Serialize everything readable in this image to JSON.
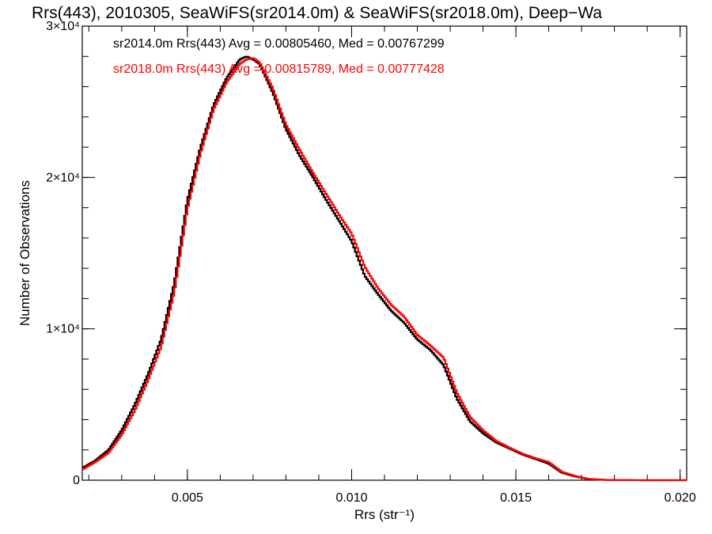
{
  "chart_data": {
    "type": "line",
    "title": "Rrs(443), 2010305, SeaWiFS(sr2014.0m) & SeaWiFS(sr2018.0m), Deep−Wa",
    "xlabel": "Rrs (str⁻¹)",
    "ylabel": "Number of Observations",
    "xlim": [
      0.0018,
      0.0202
    ],
    "ylim": [
      0,
      30000
    ],
    "x_ticks": [
      {
        "value": 0.005,
        "label": "0.005"
      },
      {
        "value": 0.01,
        "label": "0.010"
      },
      {
        "value": 0.015,
        "label": "0.015"
      },
      {
        "value": 0.02,
        "label": "0.020"
      }
    ],
    "y_ticks": [
      {
        "value": 0,
        "label": "0"
      },
      {
        "value": 10000,
        "label": "1×10⁴"
      },
      {
        "value": 20000,
        "label": "2×10⁴"
      },
      {
        "value": 30000,
        "label": "3×10⁴"
      }
    ],
    "grid": false,
    "legend_position": "top-left",
    "series": [
      {
        "name": "sr2014.0m",
        "legend_text": "sr2014.0m Rrs(443) Avg = 0.00805460, Med = 0.00767299",
        "color": "#000000",
        "x": [
          0.0018,
          0.0022,
          0.0026,
          0.003,
          0.0034,
          0.0038,
          0.0042,
          0.0046,
          0.005,
          0.0054,
          0.0058,
          0.0062,
          0.0066,
          0.0068,
          0.007,
          0.0072,
          0.0076,
          0.008,
          0.0084,
          0.0088,
          0.0092,
          0.0096,
          0.01,
          0.0104,
          0.0108,
          0.0112,
          0.0116,
          0.012,
          0.0124,
          0.0128,
          0.0132,
          0.0136,
          0.014,
          0.0144,
          0.0148,
          0.0152,
          0.0156,
          0.016,
          0.0164,
          0.0168,
          0.0172,
          0.0176,
          0.018,
          0.019,
          0.0202
        ],
        "y": [
          800,
          1300,
          2000,
          3300,
          5000,
          7000,
          9300,
          13000,
          18500,
          22000,
          24800,
          26600,
          27800,
          28000,
          27800,
          27500,
          25600,
          23200,
          21500,
          20100,
          18600,
          17200,
          15800,
          13500,
          12300,
          11200,
          10400,
          9300,
          8600,
          7600,
          5400,
          3900,
          3100,
          2500,
          2100,
          1700,
          1400,
          1100,
          500,
          250,
          80,
          30,
          10,
          0,
          0
        ]
      },
      {
        "name": "sr2018.0m",
        "legend_text": "sr2018.0m Rrs(443) Avg = 0.00815789, Med = 0.00777428",
        "color": "#ff0000",
        "x": [
          0.0018,
          0.0022,
          0.0026,
          0.003,
          0.0034,
          0.0038,
          0.0042,
          0.0046,
          0.005,
          0.0054,
          0.0058,
          0.0062,
          0.0066,
          0.0068,
          0.007,
          0.0072,
          0.0076,
          0.008,
          0.0084,
          0.0088,
          0.0092,
          0.0096,
          0.01,
          0.0104,
          0.0108,
          0.0112,
          0.0116,
          0.012,
          0.0124,
          0.0128,
          0.0132,
          0.0136,
          0.014,
          0.0144,
          0.0148,
          0.0152,
          0.0156,
          0.016,
          0.0164,
          0.0168,
          0.0172,
          0.0176,
          0.018,
          0.019,
          0.0202
        ],
        "y": [
          700,
          1200,
          1800,
          3000,
          4600,
          6600,
          8800,
          12400,
          17900,
          21600,
          24500,
          26300,
          27500,
          27800,
          27900,
          27600,
          25900,
          23500,
          21900,
          20400,
          19000,
          17600,
          16300,
          14100,
          12700,
          11600,
          10800,
          9600,
          8900,
          8100,
          5800,
          4200,
          3300,
          2600,
          2150,
          1750,
          1450,
          1200,
          550,
          280,
          90,
          35,
          10,
          0,
          0
        ]
      }
    ]
  }
}
